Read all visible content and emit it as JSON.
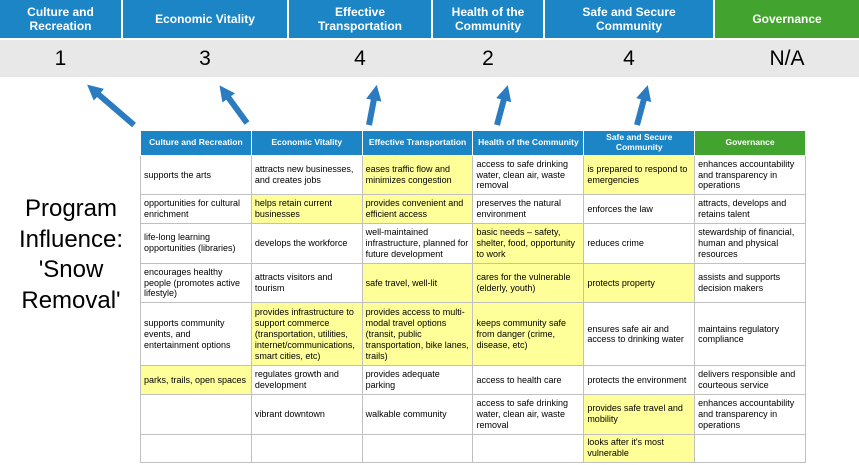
{
  "title": "Program Influence: 'Snow Removal'",
  "colors": {
    "blue": "#1b85c6",
    "green": "#42a42e",
    "highlight": "#ffff99",
    "score_bg": "#e8e8e8",
    "arrow": "#2b7bc0",
    "border": "#c0c0c0"
  },
  "pillars": [
    {
      "label": "Culture and Recreation",
      "score": "1",
      "theme": "blue"
    },
    {
      "label": "Economic Vitality",
      "score": "3",
      "theme": "blue"
    },
    {
      "label": "Effective Transportation",
      "score": "4",
      "theme": "blue"
    },
    {
      "label": "Health of the Community",
      "score": "2",
      "theme": "blue"
    },
    {
      "label": "Safe and Secure Community",
      "score": "4",
      "theme": "blue"
    },
    {
      "label": "Governance",
      "score": "N/A",
      "theme": "green"
    }
  ],
  "table": {
    "headers": [
      {
        "label": "Culture and Recreation",
        "theme": "blue"
      },
      {
        "label": "Economic Vitality",
        "theme": "blue"
      },
      {
        "label": "Effective Transportation",
        "theme": "blue"
      },
      {
        "label": "Health of the Community",
        "theme": "blue"
      },
      {
        "label": "Safe and Secure Community",
        "theme": "blue"
      },
      {
        "label": "Governance",
        "theme": "green"
      }
    ],
    "rows": [
      [
        {
          "text": "supports the arts",
          "hl": false
        },
        {
          "text": "attracts new businesses, and creates jobs",
          "hl": false
        },
        {
          "text": "eases traffic flow and minimizes congestion",
          "hl": true
        },
        {
          "text": "access to safe drinking water, clean air, waste removal",
          "hl": false
        },
        {
          "text": "is prepared to respond to emergencies",
          "hl": true
        },
        {
          "text": "enhances accountability and transparency in operations",
          "hl": false
        }
      ],
      [
        {
          "text": "opportunities for cultural enrichment",
          "hl": false
        },
        {
          "text": "helps retain current businesses",
          "hl": true
        },
        {
          "text": "provides convenient and efficient access",
          "hl": true
        },
        {
          "text": "preserves the natural environment",
          "hl": false
        },
        {
          "text": "enforces the law",
          "hl": false
        },
        {
          "text": "attracts, develops and retains talent",
          "hl": false
        }
      ],
      [
        {
          "text": "life-long learning opportunities (libraries)",
          "hl": false
        },
        {
          "text": "develops the workforce",
          "hl": false
        },
        {
          "text": "well-maintained infrastructure, planned for future development",
          "hl": false
        },
        {
          "text": "basic needs – safety, shelter, food, opportunity to work",
          "hl": true
        },
        {
          "text": "reduces crime",
          "hl": false
        },
        {
          "text": "stewardship of financial, human and physical resources",
          "hl": false
        }
      ],
      [
        {
          "text": "encourages healthy people (promotes active lifestyle)",
          "hl": false
        },
        {
          "text": "attracts visitors and tourism",
          "hl": false
        },
        {
          "text": "safe travel, well-lit",
          "hl": true
        },
        {
          "text": "cares for the vulnerable (elderly, youth)",
          "hl": true
        },
        {
          "text": "protects property",
          "hl": true
        },
        {
          "text": "assists and supports decision makers",
          "hl": false
        }
      ],
      [
        {
          "text": "supports community events, and entertainment options",
          "hl": false
        },
        {
          "text": "provides infrastructure to support commerce (transportation, utilities, internet/communications, smart cities, etc)",
          "hl": true
        },
        {
          "text": "provides access to multi-modal travel options (transit, public transportation, bike lanes, trails)",
          "hl": true
        },
        {
          "text": "keeps community safe from danger (crime, disease, etc)",
          "hl": true
        },
        {
          "text": "ensures safe air and access to drinking water",
          "hl": false
        },
        {
          "text": "maintains regulatory compliance",
          "hl": false
        }
      ],
      [
        {
          "text": "parks, trails, open spaces",
          "hl": true
        },
        {
          "text": "regulates growth and development",
          "hl": false
        },
        {
          "text": "provides adequate parking",
          "hl": false
        },
        {
          "text": "access to health care",
          "hl": false
        },
        {
          "text": "protects the environment",
          "hl": false
        },
        {
          "text": "delivers responsible and courteous service",
          "hl": false
        }
      ],
      [
        {
          "text": "",
          "hl": false
        },
        {
          "text": "vibrant downtown",
          "hl": false
        },
        {
          "text": "walkable community",
          "hl": false
        },
        {
          "text": "access to safe drinking water, clean air, waste removal",
          "hl": false
        },
        {
          "text": "provides safe travel and mobility",
          "hl": true
        },
        {
          "text": "enhances accountability and transparency in operations",
          "hl": false
        }
      ],
      [
        {
          "text": "",
          "hl": false
        },
        {
          "text": "",
          "hl": false
        },
        {
          "text": "",
          "hl": false
        },
        {
          "text": "",
          "hl": false
        },
        {
          "text": "looks after it's most vulnerable",
          "hl": true
        },
        {
          "text": "",
          "hl": false
        }
      ]
    ]
  }
}
